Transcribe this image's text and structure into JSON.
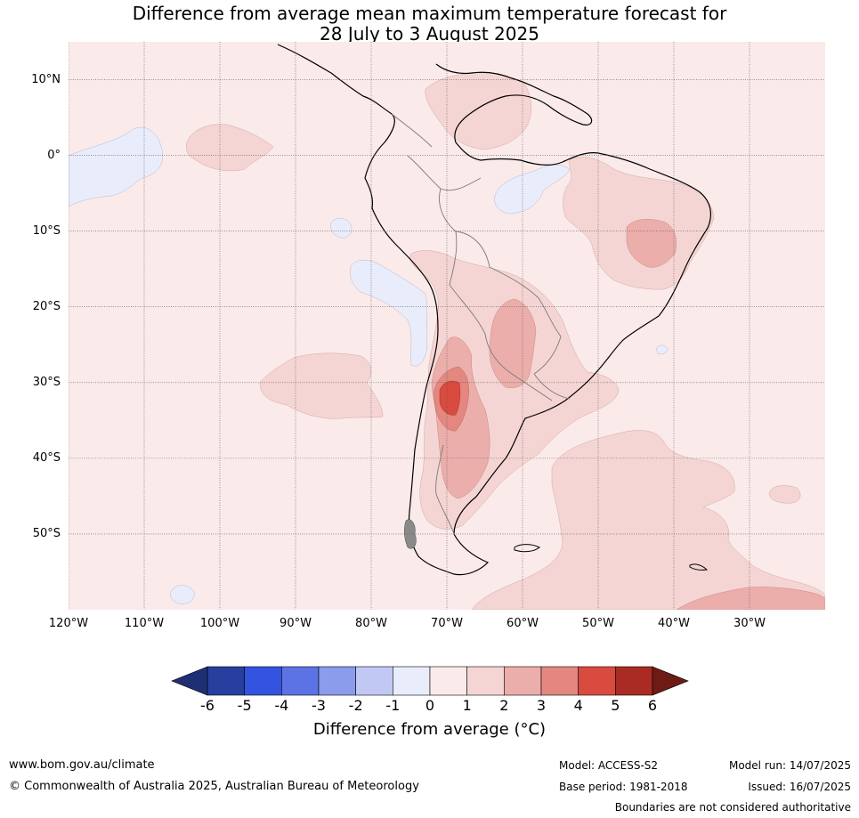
{
  "title_line1": "Difference from average mean maximum temperature forecast for",
  "title_line2": "28 July to 3 August 2025",
  "map": {
    "lon_range": [
      -120,
      -20
    ],
    "lat_range": [
      -60,
      15
    ],
    "lat_labels": [
      "10°N",
      "0°",
      "10°S",
      "20°S",
      "30°S",
      "40°S",
      "50°S"
    ],
    "lat_values": [
      10,
      0,
      -10,
      -20,
      -30,
      -40,
      -50
    ],
    "lon_labels": [
      "120°W",
      "110°W",
      "100°W",
      "90°W",
      "80°W",
      "70°W",
      "60°W",
      "50°W",
      "40°W",
      "30°W"
    ],
    "lon_values": [
      -120,
      -110,
      -100,
      -90,
      -80,
      -70,
      -60,
      -50,
      -40,
      -30
    ],
    "background_color": "#fbeaea"
  },
  "colorbar": {
    "ticks": [
      "-6",
      "-5",
      "-4",
      "-3",
      "-2",
      "-1",
      "0",
      "1",
      "2",
      "3",
      "4",
      "5",
      "6"
    ],
    "colors": [
      "#283f9f",
      "#3354e0",
      "#5c73e6",
      "#8a9ceb",
      "#c1c8f4",
      "#e9ecfb",
      "#fbeaea",
      "#f5d5d3",
      "#ecaeab",
      "#e48781",
      "#d94a3f",
      "#a92b23"
    ],
    "under_color": "#1f2f73",
    "over_color": "#6e1a15",
    "label": "Difference from average (°C)"
  },
  "footer": {
    "website": "www.bom.gov.au/climate",
    "copyright": "© Commonwealth of Australia 2025, Australian Bureau of Meteorology",
    "model": "Model: ACCESS-S2",
    "base_period": "Base period: 1981-2018",
    "model_run": "Model run: 14/07/2025",
    "issued": "Issued: 16/07/2025",
    "disclaimer": "Boundaries are not considered authoritative"
  }
}
